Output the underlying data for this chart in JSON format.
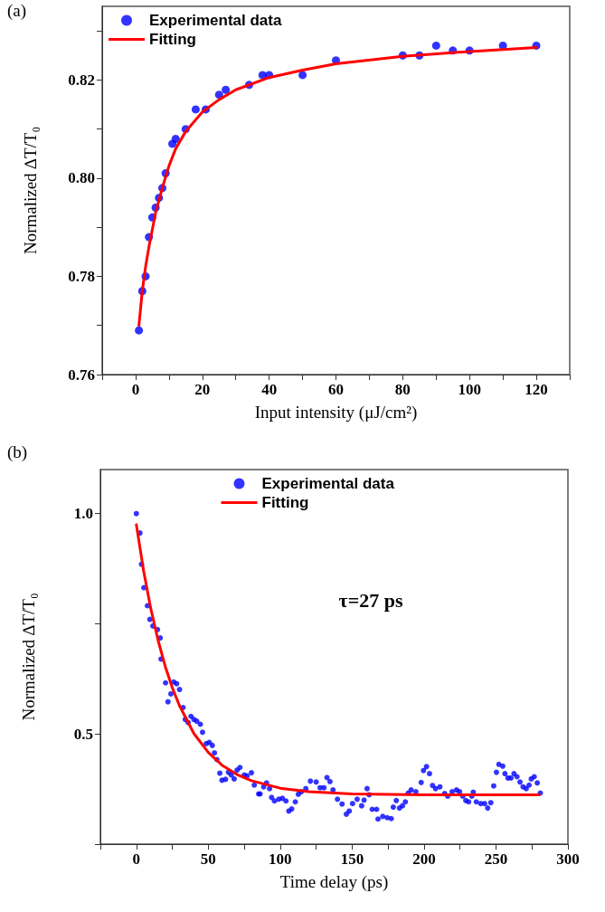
{
  "chart_data": [
    {
      "type": "scatter",
      "title": "(a)",
      "xlabel": "Input intensity (μJ/cm²)",
      "ylabel": "Normalized ∆T/T₀",
      "xlim": [
        -10,
        130
      ],
      "xticks": [
        {
          "value": -10,
          "label": null
        },
        0,
        {
          "value": 10,
          "label": null
        },
        20,
        {
          "value": 30,
          "label": null
        },
        40,
        {
          "value": 50,
          "label": null
        },
        60,
        {
          "value": 70,
          "label": null
        },
        80,
        {
          "value": 90,
          "label": null
        },
        100,
        {
          "value": 110,
          "label": null
        },
        120,
        {
          "value": 130,
          "label": null
        }
      ],
      "ylim": [
        0.76,
        0.835
      ],
      "yticks": [
        0.76,
        {
          "value": 0.77,
          "label": null
        },
        0.78,
        {
          "value": 0.79,
          "label": null
        },
        {
          "value": 0.8,
          "label": "0.80"
        },
        {
          "value": 0.81,
          "label": null
        },
        0.82,
        {
          "value": 0.83,
          "label": null
        }
      ],
      "grid": false,
      "legend": "top left",
      "marker": "circle",
      "series": [
        {
          "name": "Experimental data",
          "color": "#0000ff",
          "x": [
            1,
            2,
            3,
            4,
            5,
            6,
            7,
            8,
            9,
            11,
            12,
            15,
            18,
            21,
            25,
            27,
            34,
            38,
            40,
            50,
            60,
            80,
            85,
            90,
            95,
            100,
            110,
            120
          ],
          "values": [
            0.769,
            0.777,
            0.78,
            0.788,
            0.792,
            0.794,
            0.796,
            0.798,
            0.801,
            0.807,
            0.808,
            0.81,
            0.814,
            0.814,
            0.817,
            0.818,
            0.819,
            0.821,
            0.821,
            0.821,
            0.824,
            0.825,
            0.825,
            0.827,
            0.826,
            0.826,
            0.827,
            0.827
          ]
        },
        {
          "name": "Fitting",
          "type": "line",
          "color": "#ff0000",
          "line_style": "solid",
          "marker": "none",
          "x": [
            1,
            2,
            3,
            4,
            6,
            8,
            10,
            12,
            15,
            20,
            25,
            30,
            40,
            50,
            60,
            80,
            100,
            120
          ],
          "values": [
            0.77,
            0.777,
            0.782,
            0.786,
            0.793,
            0.798,
            0.8025,
            0.806,
            0.8095,
            0.8135,
            0.816,
            0.818,
            0.8205,
            0.822,
            0.8233,
            0.8248,
            0.8258,
            0.8266
          ]
        }
      ]
    },
    {
      "type": "scatter",
      "title": "(b)",
      "xlabel": "Time delay (ps)",
      "ylabel": "Normalized ∆T/T₀",
      "annotations": [
        "τ=27 ps"
      ],
      "xlim": [
        -25,
        300
      ],
      "xticks": [
        {
          "value": -25,
          "label": null
        },
        0,
        {
          "value": 25,
          "label": null
        },
        50,
        {
          "value": 75,
          "label": null
        },
        100,
        {
          "value": 125,
          "label": null
        },
        150,
        {
          "value": 175,
          "label": null
        },
        200,
        {
          "value": 225,
          "label": null
        },
        250,
        {
          "value": 275,
          "label": null
        },
        300
      ],
      "ylim": [
        0.25,
        1.1
      ],
      "yticks": [
        {
          "value": 0.25,
          "label": null
        },
        0.5,
        {
          "value": 0.75,
          "label": null
        },
        {
          "value": 1,
          "label": "1.0"
        }
      ],
      "grid": false,
      "legend": "top",
      "marker": "circle",
      "series": [
        {
          "name": "Experimental data",
          "color": "#0000ff",
          "x": [
            0,
            2.5,
            3.6,
            5.2,
            7.7,
            9.4,
            11.5,
            14.7,
            16.6,
            17.2,
            20.3,
            22,
            24,
            26,
            28,
            30,
            32.5,
            34,
            36,
            38,
            40,
            42,
            44.5,
            46,
            48.6,
            50.7,
            52.8,
            54.3,
            56,
            58,
            59.5,
            62,
            64,
            66,
            68,
            70,
            72,
            75,
            77,
            80,
            82,
            85,
            86,
            88.5,
            90.5,
            92.6,
            94,
            96,
            99,
            101.5,
            104,
            106,
            108,
            110.5,
            112.6,
            114.7,
            117.8,
            121,
            125,
            127.7,
            130.4,
            132.5,
            134.6,
            136.7,
            139.8,
            143,
            146,
            148,
            150.3,
            153.5,
            156.6,
            158.3,
            160.4,
            161.8,
            164,
            167,
            168,
            171.3,
            174.4,
            177.2,
            178.6,
            180.7,
            182.9,
            185,
            187,
            189,
            191,
            194.3,
            198,
            199.6,
            201.7,
            203.8,
            205.9,
            208,
            211,
            214.3,
            216.4,
            219.5,
            222.6,
            224.7,
            226.9,
            229,
            231,
            233.2,
            234.2,
            236.3,
            239.4,
            242.1,
            244.2,
            246.4,
            248.4,
            250.3,
            252,
            254.7,
            256.2,
            258.3,
            260.4,
            262.5,
            264.6,
            266.7,
            268.8,
            271,
            273,
            274.5,
            276.6,
            278.7,
            280.8
          ],
          "values": [
            1.0,
            0.956,
            0.885,
            0.832,
            0.791,
            0.76,
            0.745,
            0.737,
            0.718,
            0.67,
            0.616,
            0.573,
            0.591,
            0.618,
            0.614,
            0.601,
            0.56,
            0.533,
            0.526,
            0.54,
            0.533,
            0.529,
            0.522,
            0.504,
            0.478,
            0.481,
            0.474,
            0.457,
            0.442,
            0.411,
            0.395,
            0.397,
            0.413,
            0.407,
            0.398,
            0.418,
            0.424,
            0.407,
            0.405,
            0.412,
            0.384,
            0.364,
            0.364,
            0.38,
            0.389,
            0.376,
            0.356,
            0.348,
            0.352,
            0.354,
            0.348,
            0.325,
            0.33,
            0.346,
            0.363,
            0.369,
            0.376,
            0.393,
            0.391,
            0.378,
            0.378,
            0.401,
            0.392,
            0.373,
            0.352,
            0.341,
            0.318,
            0.325,
            0.342,
            0.352,
            0.337,
            0.35,
            0.376,
            0.362,
            0.329,
            0.329,
            0.307,
            0.313,
            0.31,
            0.308,
            0.334,
            0.349,
            0.332,
            0.337,
            0.346,
            0.366,
            0.373,
            0.369,
            0.39,
            0.417,
            0.426,
            0.41,
            0.383,
            0.376,
            0.38,
            0.365,
            0.359,
            0.369,
            0.373,
            0.369,
            0.359,
            0.349,
            0.346,
            0.359,
            0.368,
            0.346,
            0.342,
            0.342,
            0.332,
            0.344,
            0.382,
            0.413,
            0.431,
            0.427,
            0.41,
            0.4,
            0.4,
            0.41,
            0.403,
            0.391,
            0.38,
            0.376,
            0.384,
            0.398,
            0.403,
            0.389,
            0.366
          ]
        },
        {
          "name": "Fitting",
          "type": "line",
          "color": "#ff0000",
          "line_style": "solid",
          "marker": "none",
          "x": [
            0,
            5,
            10,
            15,
            20,
            25,
            30,
            40,
            50,
            60,
            70,
            80,
            100,
            120,
            150,
            200,
            280
          ],
          "values": [
            0.975,
            0.871,
            0.785,
            0.714,
            0.654,
            0.605,
            0.564,
            0.501,
            0.458,
            0.428,
            0.408,
            0.394,
            0.377,
            0.369,
            0.364,
            0.362,
            0.362
          ]
        }
      ]
    }
  ]
}
